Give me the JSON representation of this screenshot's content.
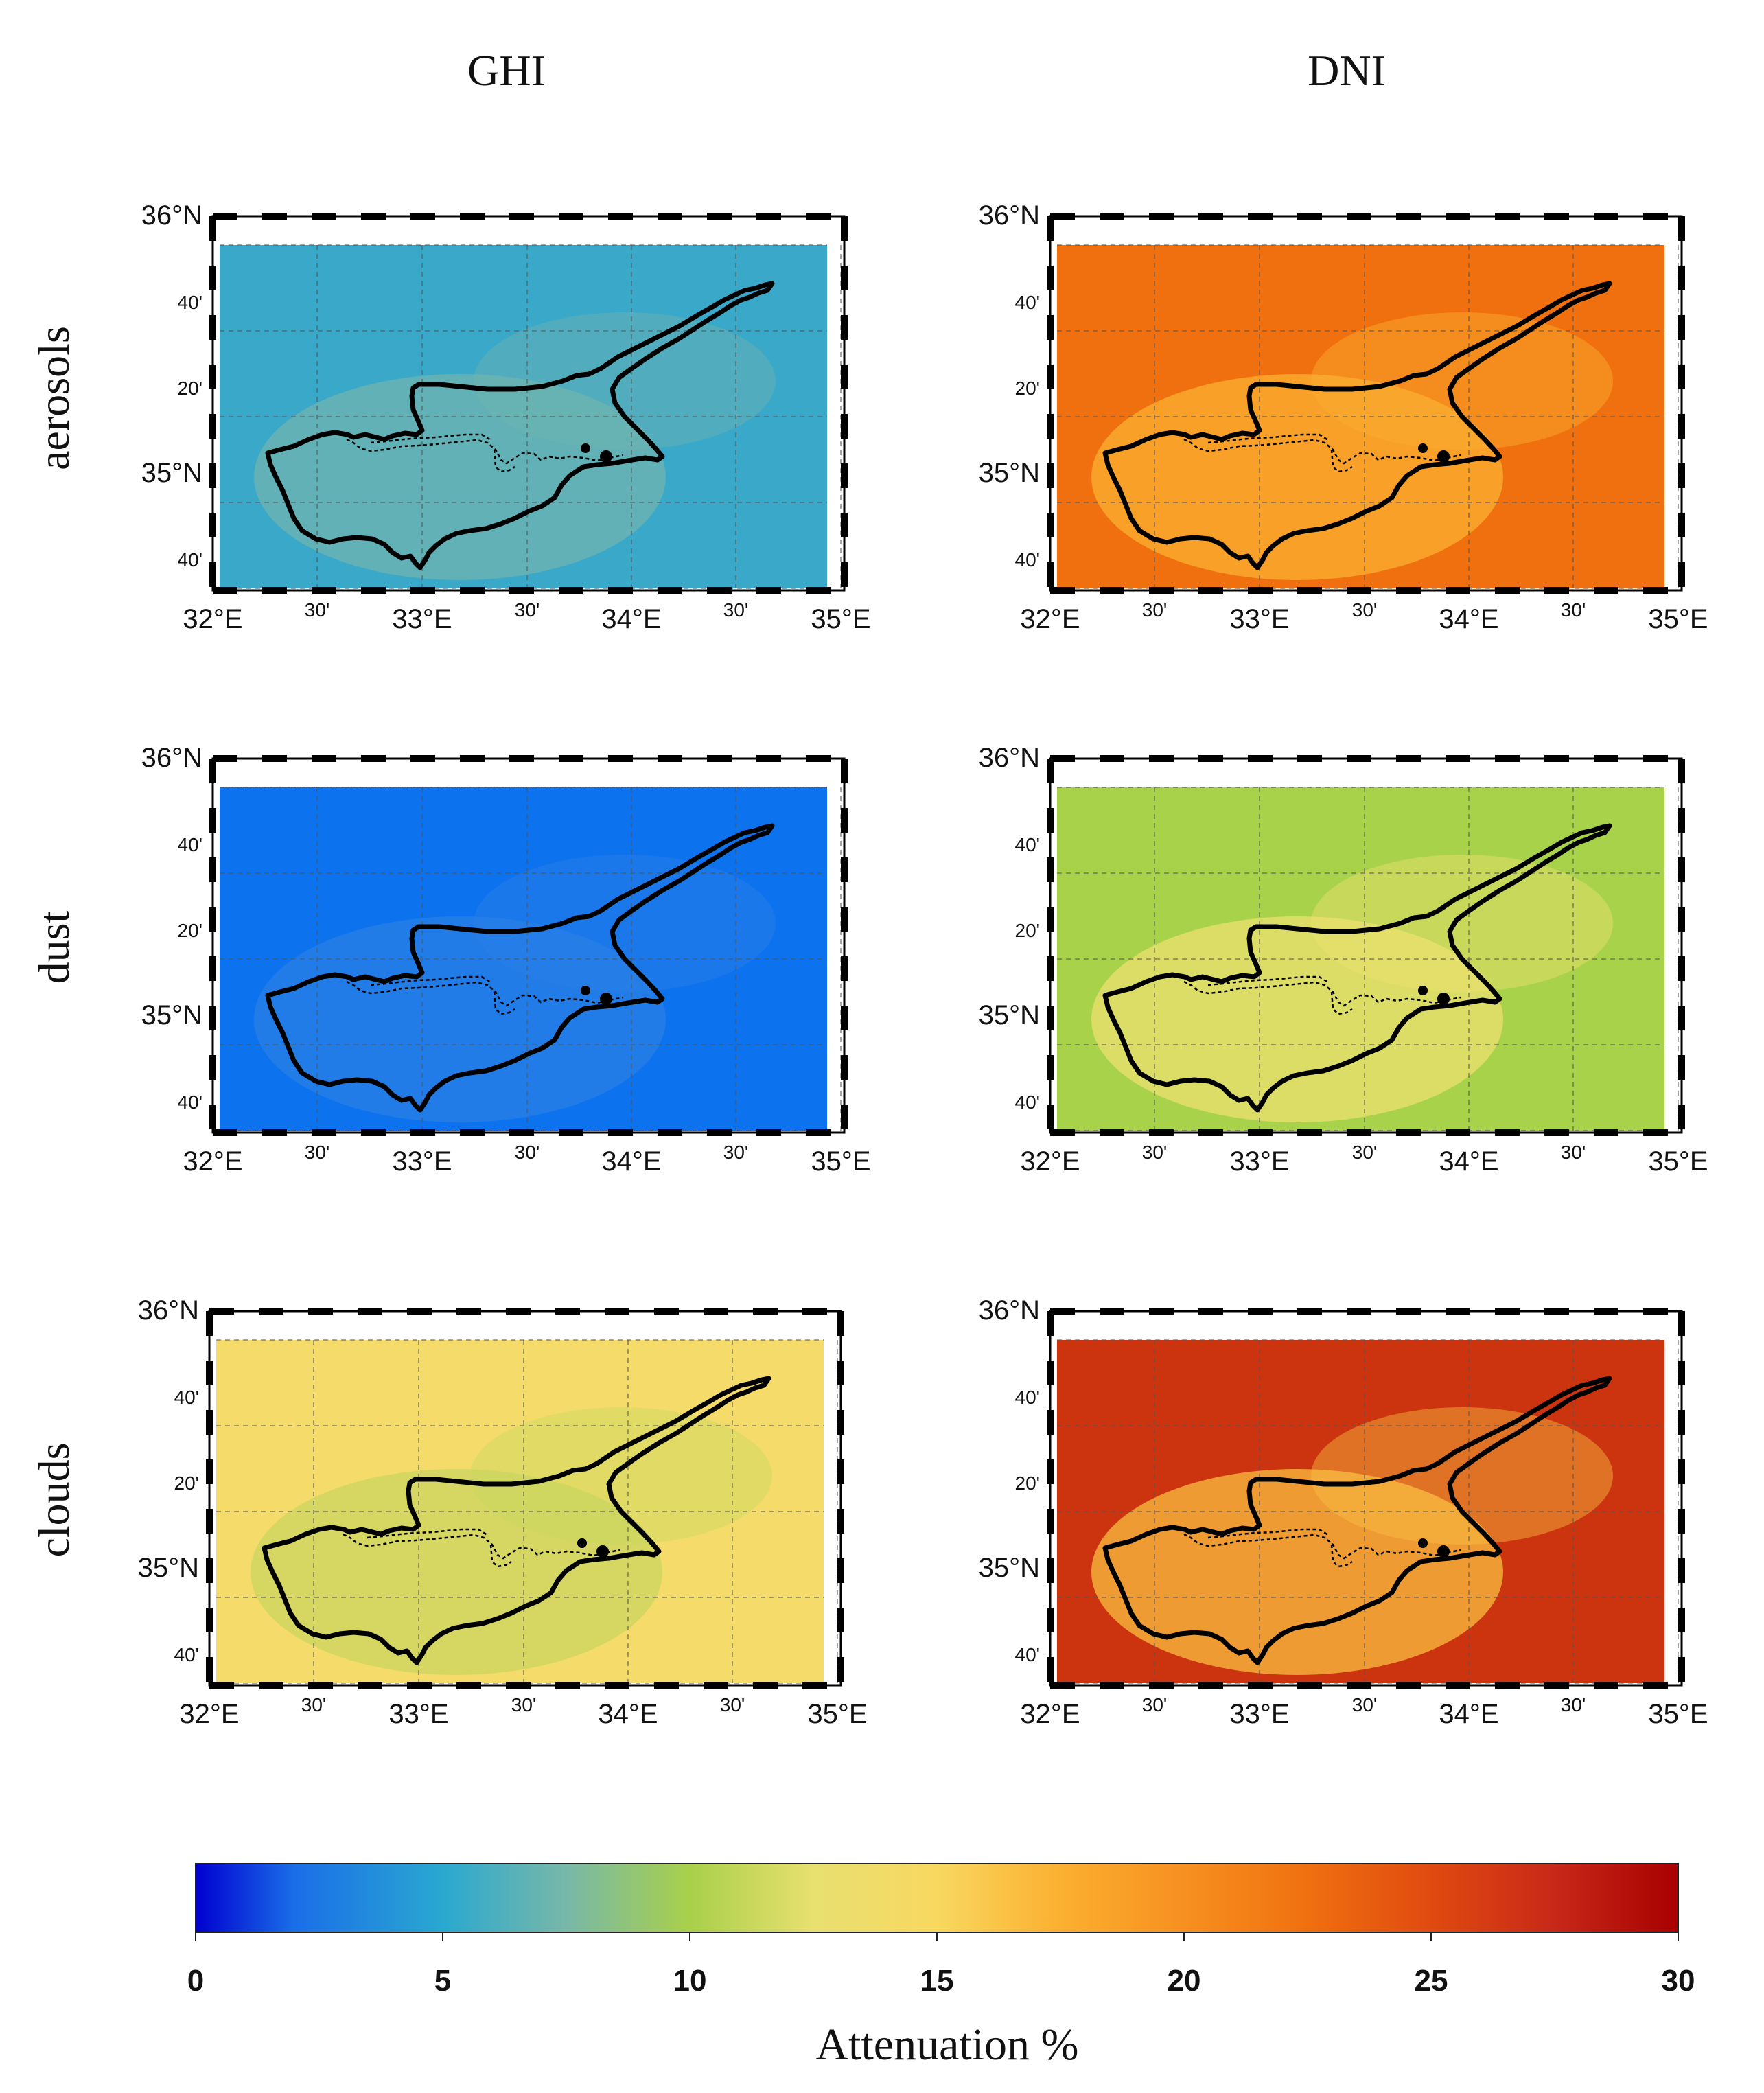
{
  "columns": [
    "GHI",
    "DNI"
  ],
  "rows": [
    "aerosols",
    "dust",
    "clouds"
  ],
  "axes": {
    "x_major": [
      "32°E",
      "33°E",
      "34°E",
      "35°E"
    ],
    "x_minor": [
      "30'",
      "30'",
      "30'"
    ],
    "y_major": [
      "36°N",
      "35°N"
    ],
    "y_minor": [
      "40'",
      "20'",
      "40'"
    ]
  },
  "map_data": {
    "type": "heatmap-map",
    "lon_range": [
      32,
      35
    ],
    "lat_range": [
      34.5,
      36
    ],
    "panels": [
      {
        "row": "aerosols",
        "column": "GHI",
        "base_value": 5.5,
        "land_value": 8.5,
        "base_color": "#3aa8c8",
        "land_color": "#6fb4b0"
      },
      {
        "row": "aerosols",
        "column": "DNI",
        "base_value": 23.5,
        "land_value": 19.0,
        "base_color": "#f07010",
        "land_color": "#fbb030"
      },
      {
        "row": "dust",
        "column": "GHI",
        "base_value": 2.5,
        "land_value": 3.5,
        "base_color": "#0d72ee",
        "land_color": "#2a80e6"
      },
      {
        "row": "dust",
        "column": "DNI",
        "base_value": 11.5,
        "land_value": 14.0,
        "base_color": "#a8d24a",
        "land_color": "#ede070"
      },
      {
        "row": "clouds",
        "column": "GHI",
        "base_value": 14.0,
        "land_value": 11.5,
        "base_color": "#f5dc6a",
        "land_color": "#c9d660"
      },
      {
        "row": "clouds",
        "column": "DNI",
        "base_value": 27.5,
        "land_value": 19.0,
        "base_color": "#cc3410",
        "land_color": "#f9be40"
      }
    ]
  },
  "colorbar": {
    "title": "Attenuation %",
    "min": 0,
    "max": 30,
    "ticks": [
      "0",
      "5",
      "10",
      "15",
      "20",
      "25",
      "30"
    ],
    "stops": [
      {
        "value": 0,
        "color": "#0000d0"
      },
      {
        "value": 2,
        "color": "#1a6ee8"
      },
      {
        "value": 5,
        "color": "#2aa8d0"
      },
      {
        "value": 7.5,
        "color": "#78b8a8"
      },
      {
        "value": 10,
        "color": "#a9d04a"
      },
      {
        "value": 12.5,
        "color": "#e8e070"
      },
      {
        "value": 15,
        "color": "#f8d860"
      },
      {
        "value": 17.5,
        "color": "#fbb030"
      },
      {
        "value": 20,
        "color": "#f79020"
      },
      {
        "value": 22.5,
        "color": "#f07010"
      },
      {
        "value": 25,
        "color": "#e04a10"
      },
      {
        "value": 27.5,
        "color": "#c82818"
      },
      {
        "value": 30,
        "color": "#a80000"
      }
    ]
  }
}
